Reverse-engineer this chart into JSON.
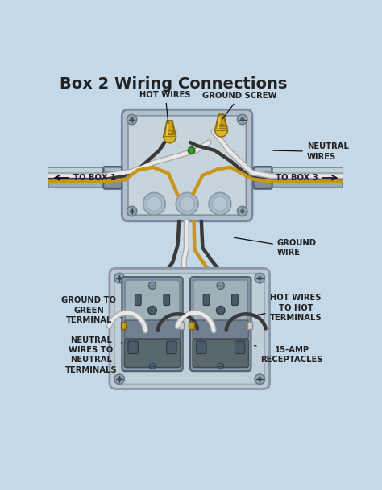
{
  "title": "Box 2 Wiring Connections",
  "title_fontsize": 14,
  "bg_color": "#c5d8e8",
  "fig_width": 4.74,
  "fig_height": 6.09,
  "labels": {
    "hot_wires": "HOT WIRES",
    "ground_screw": "GROUND SCREW",
    "neutral_wires": "NEUTRAL\nWIRES",
    "to_box1": "TO BOX 1",
    "to_box3": "TO BOX 3",
    "ground_wire": "GROUND\nWIRE",
    "ground_to_green": "GROUND TO\nGREEN\nTERMINAL",
    "hot_wires_to_hot": "HOT WIRES\nTO HOT\nTERMINALS",
    "neutral_to_neutral": "NEUTRAL\nWIRES TO\nNEUTRAL\nTERMINALS",
    "receptacles": "15-AMP\nRECEPTACLES"
  },
  "colors": {
    "wire_black": "#3a3a3a",
    "wire_white": "#e8e8e8",
    "wire_bare": "#c8961a",
    "wire_white_edge": "#aaaaaa",
    "nut_gold": "#c8a018",
    "nut_dark": "#7a6010",
    "box_fill": "#b0bfca",
    "box_inner": "#c8d4dc",
    "box_edge": "#7888a0",
    "conduit_fill": "#9aacb8",
    "conduit_top": "#c0d0d8",
    "conduit_edge": "#6a8090",
    "fitting_fill": "#8090a0",
    "fitting_edge": "#506070",
    "receptacle_body": "#8898a8",
    "receptacle_face": "#a0b0b8",
    "receptacle_dark": "#4a5a68",
    "receptacle_mid": "#708090",
    "plate_fill": "#c0ced8",
    "plate_edge": "#8090a0",
    "label_color": "#222222",
    "green_dot": "#3a9a30"
  }
}
